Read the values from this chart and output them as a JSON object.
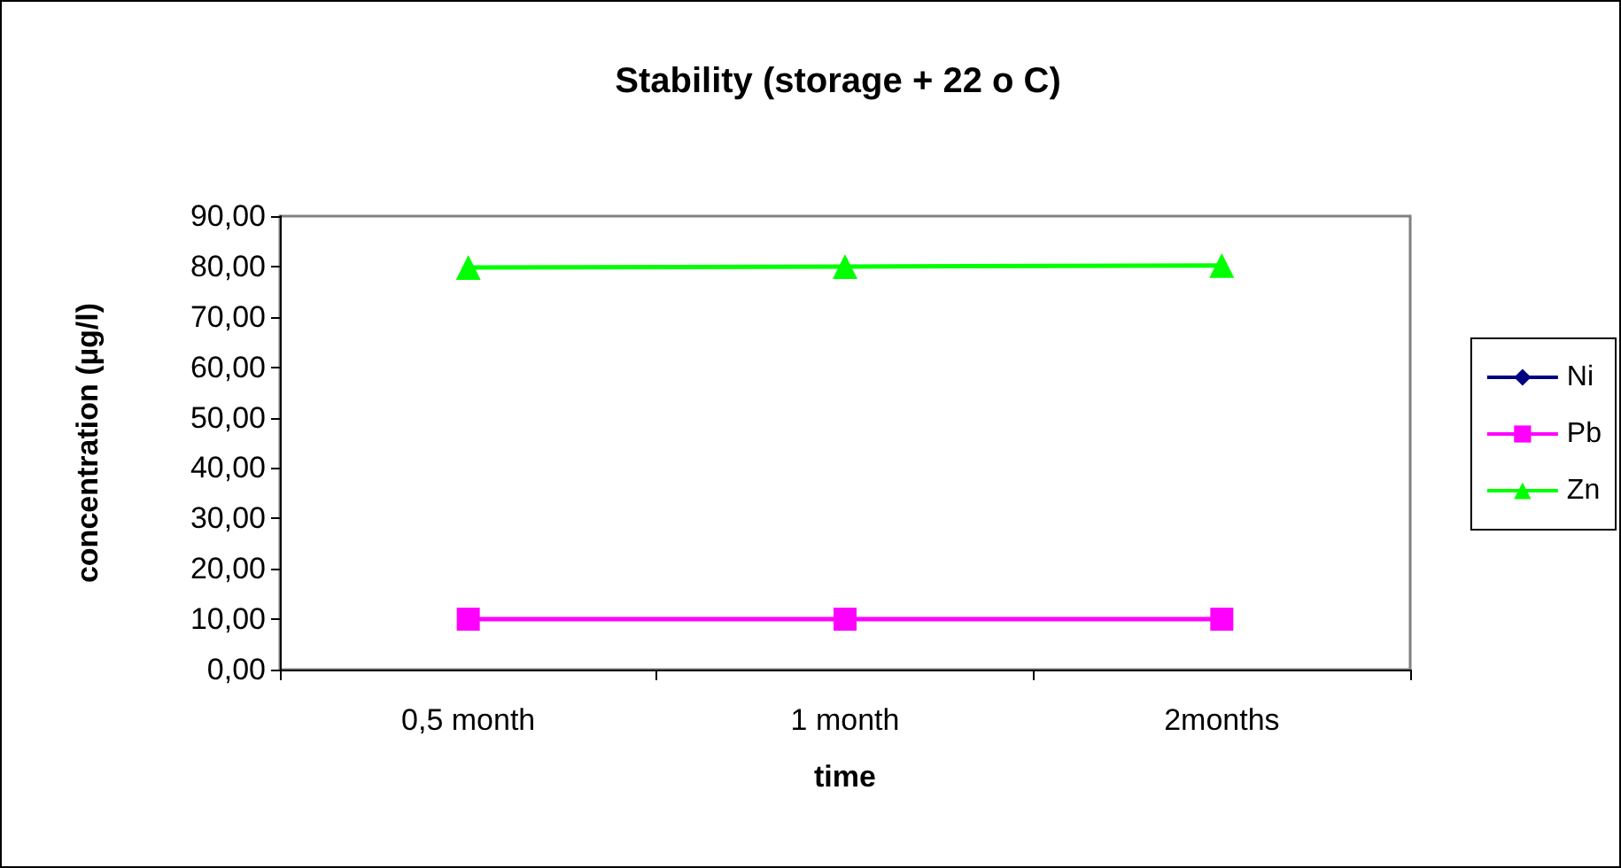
{
  "chart_data": {
    "type": "line",
    "title": "Stability (storage + 22 o C)",
    "xlabel": "time",
    "ylabel": "concentration (µg/l)",
    "categories": [
      "0,5 month",
      "1 month",
      "2months"
    ],
    "series": [
      {
        "name": "Ni",
        "color": "#000080",
        "marker": "diamond",
        "values": [
          null,
          null,
          null
        ]
      },
      {
        "name": "Pb",
        "color": "#ff00ff",
        "marker": "square",
        "values": [
          10,
          10,
          10
        ]
      },
      {
        "name": "Zn",
        "color": "#00ff00",
        "marker": "triangle",
        "values": [
          79.8,
          80.0,
          80.2
        ]
      }
    ],
    "ylim": [
      0,
      90
    ],
    "yticks": [
      {
        "value": 0,
        "label": "0,00"
      },
      {
        "value": 10,
        "label": "10,00"
      },
      {
        "value": 20,
        "label": "20,00"
      },
      {
        "value": 30,
        "label": "30,00"
      },
      {
        "value": 40,
        "label": "40,00"
      },
      {
        "value": 50,
        "label": "50,00"
      },
      {
        "value": 60,
        "label": "60,00"
      },
      {
        "value": 70,
        "label": "70,00"
      },
      {
        "value": 80,
        "label": "80,00"
      },
      {
        "value": 90,
        "label": "90,00"
      }
    ],
    "grid": false,
    "legend": "right"
  }
}
